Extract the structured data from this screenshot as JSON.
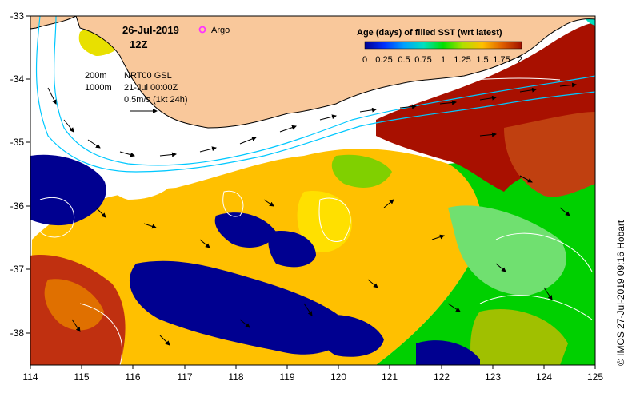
{
  "map": {
    "date": "26-Jul-2019",
    "hour": "12Z",
    "argo_label": "Argo",
    "isobaths": [
      "200m",
      "1000m"
    ],
    "altimetry": "NRT00 GSL",
    "altimetry_date": "21-Jul 00:00Z",
    "velocity_scale": "0.5m/s (1kt 24h)",
    "colorbar_title": "Age (days) of filled SST (wrt latest)",
    "colorbar_ticks": [
      "0",
      "0.25",
      "0.5",
      "0.75",
      "1",
      "1.25",
      "1.5",
      "1.75",
      "2"
    ],
    "colorbar_range": [
      0,
      2
    ],
    "credit": "© IMOS 27-Jul-2019 09:16 Hobart",
    "lon_ticks": [
      "114",
      "115",
      "116",
      "117",
      "118",
      "119",
      "120",
      "121",
      "122",
      "123",
      "124",
      "125"
    ],
    "lat_ticks": [
      "-33",
      "-34",
      "-35",
      "-36",
      "-37",
      "-38"
    ],
    "lon_range": [
      114,
      125
    ],
    "lat_range": [
      -38.5,
      -33
    ],
    "colors": {
      "land": "#f9c89b",
      "coast": "#000000",
      "isobath": "#00c8ff",
      "contour": "#ffffff",
      "argo": "#ff33ff",
      "age_0": "#000090",
      "age_0_5": "#00a0ff",
      "age_1": "#00e000",
      "age_1_5": "#ffc000",
      "age_2": "#a01000"
    },
    "icons": [
      "argo-float-icon",
      "velocity-arrow-icon"
    ]
  }
}
